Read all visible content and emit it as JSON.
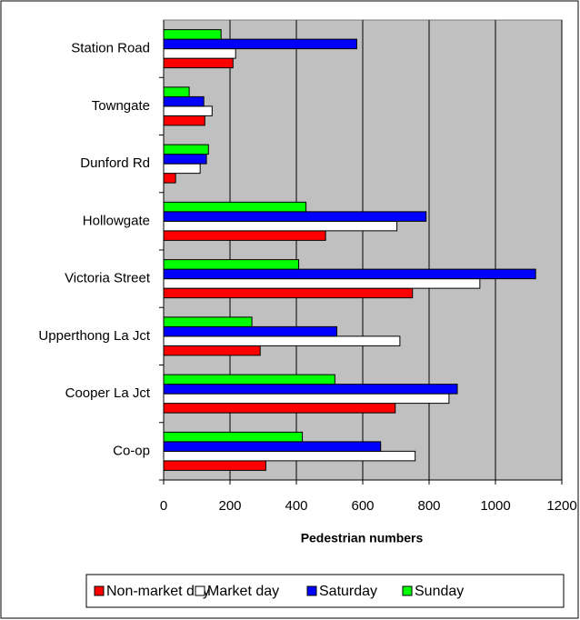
{
  "chart_data": {
    "type": "bar",
    "orientation": "horizontal",
    "xlabel": "Pedestrian numbers",
    "categories": [
      "Station Road",
      "Towngate",
      "Dunford Rd",
      "Hollowgate",
      "Victoria Street",
      "Upperthong La Jct",
      "Cooper La Jct",
      "Co-op"
    ],
    "series": [
      {
        "name": "Non-market day",
        "color": "#ff0000",
        "values": [
          209,
          124,
          36,
          488,
          750,
          291,
          698,
          308
        ]
      },
      {
        "name": "Market day",
        "color": "#ffffff",
        "values": [
          217,
          146,
          110,
          703,
          953,
          712,
          860,
          758
        ]
      },
      {
        "name": "Saturday",
        "color": "#0000ff",
        "values": [
          582,
          121,
          129,
          791,
          1121,
          522,
          885,
          654
        ]
      },
      {
        "name": "Sunday",
        "color": "#00ff00",
        "values": [
          173,
          77,
          135,
          429,
          407,
          266,
          516,
          418
        ]
      }
    ],
    "xlim": [
      0,
      1200
    ],
    "xticks": [
      0,
      200,
      400,
      600,
      800,
      1000,
      1200
    ],
    "grid": true,
    "plot_background": "#c0c0c0",
    "legend": "bottom"
  }
}
